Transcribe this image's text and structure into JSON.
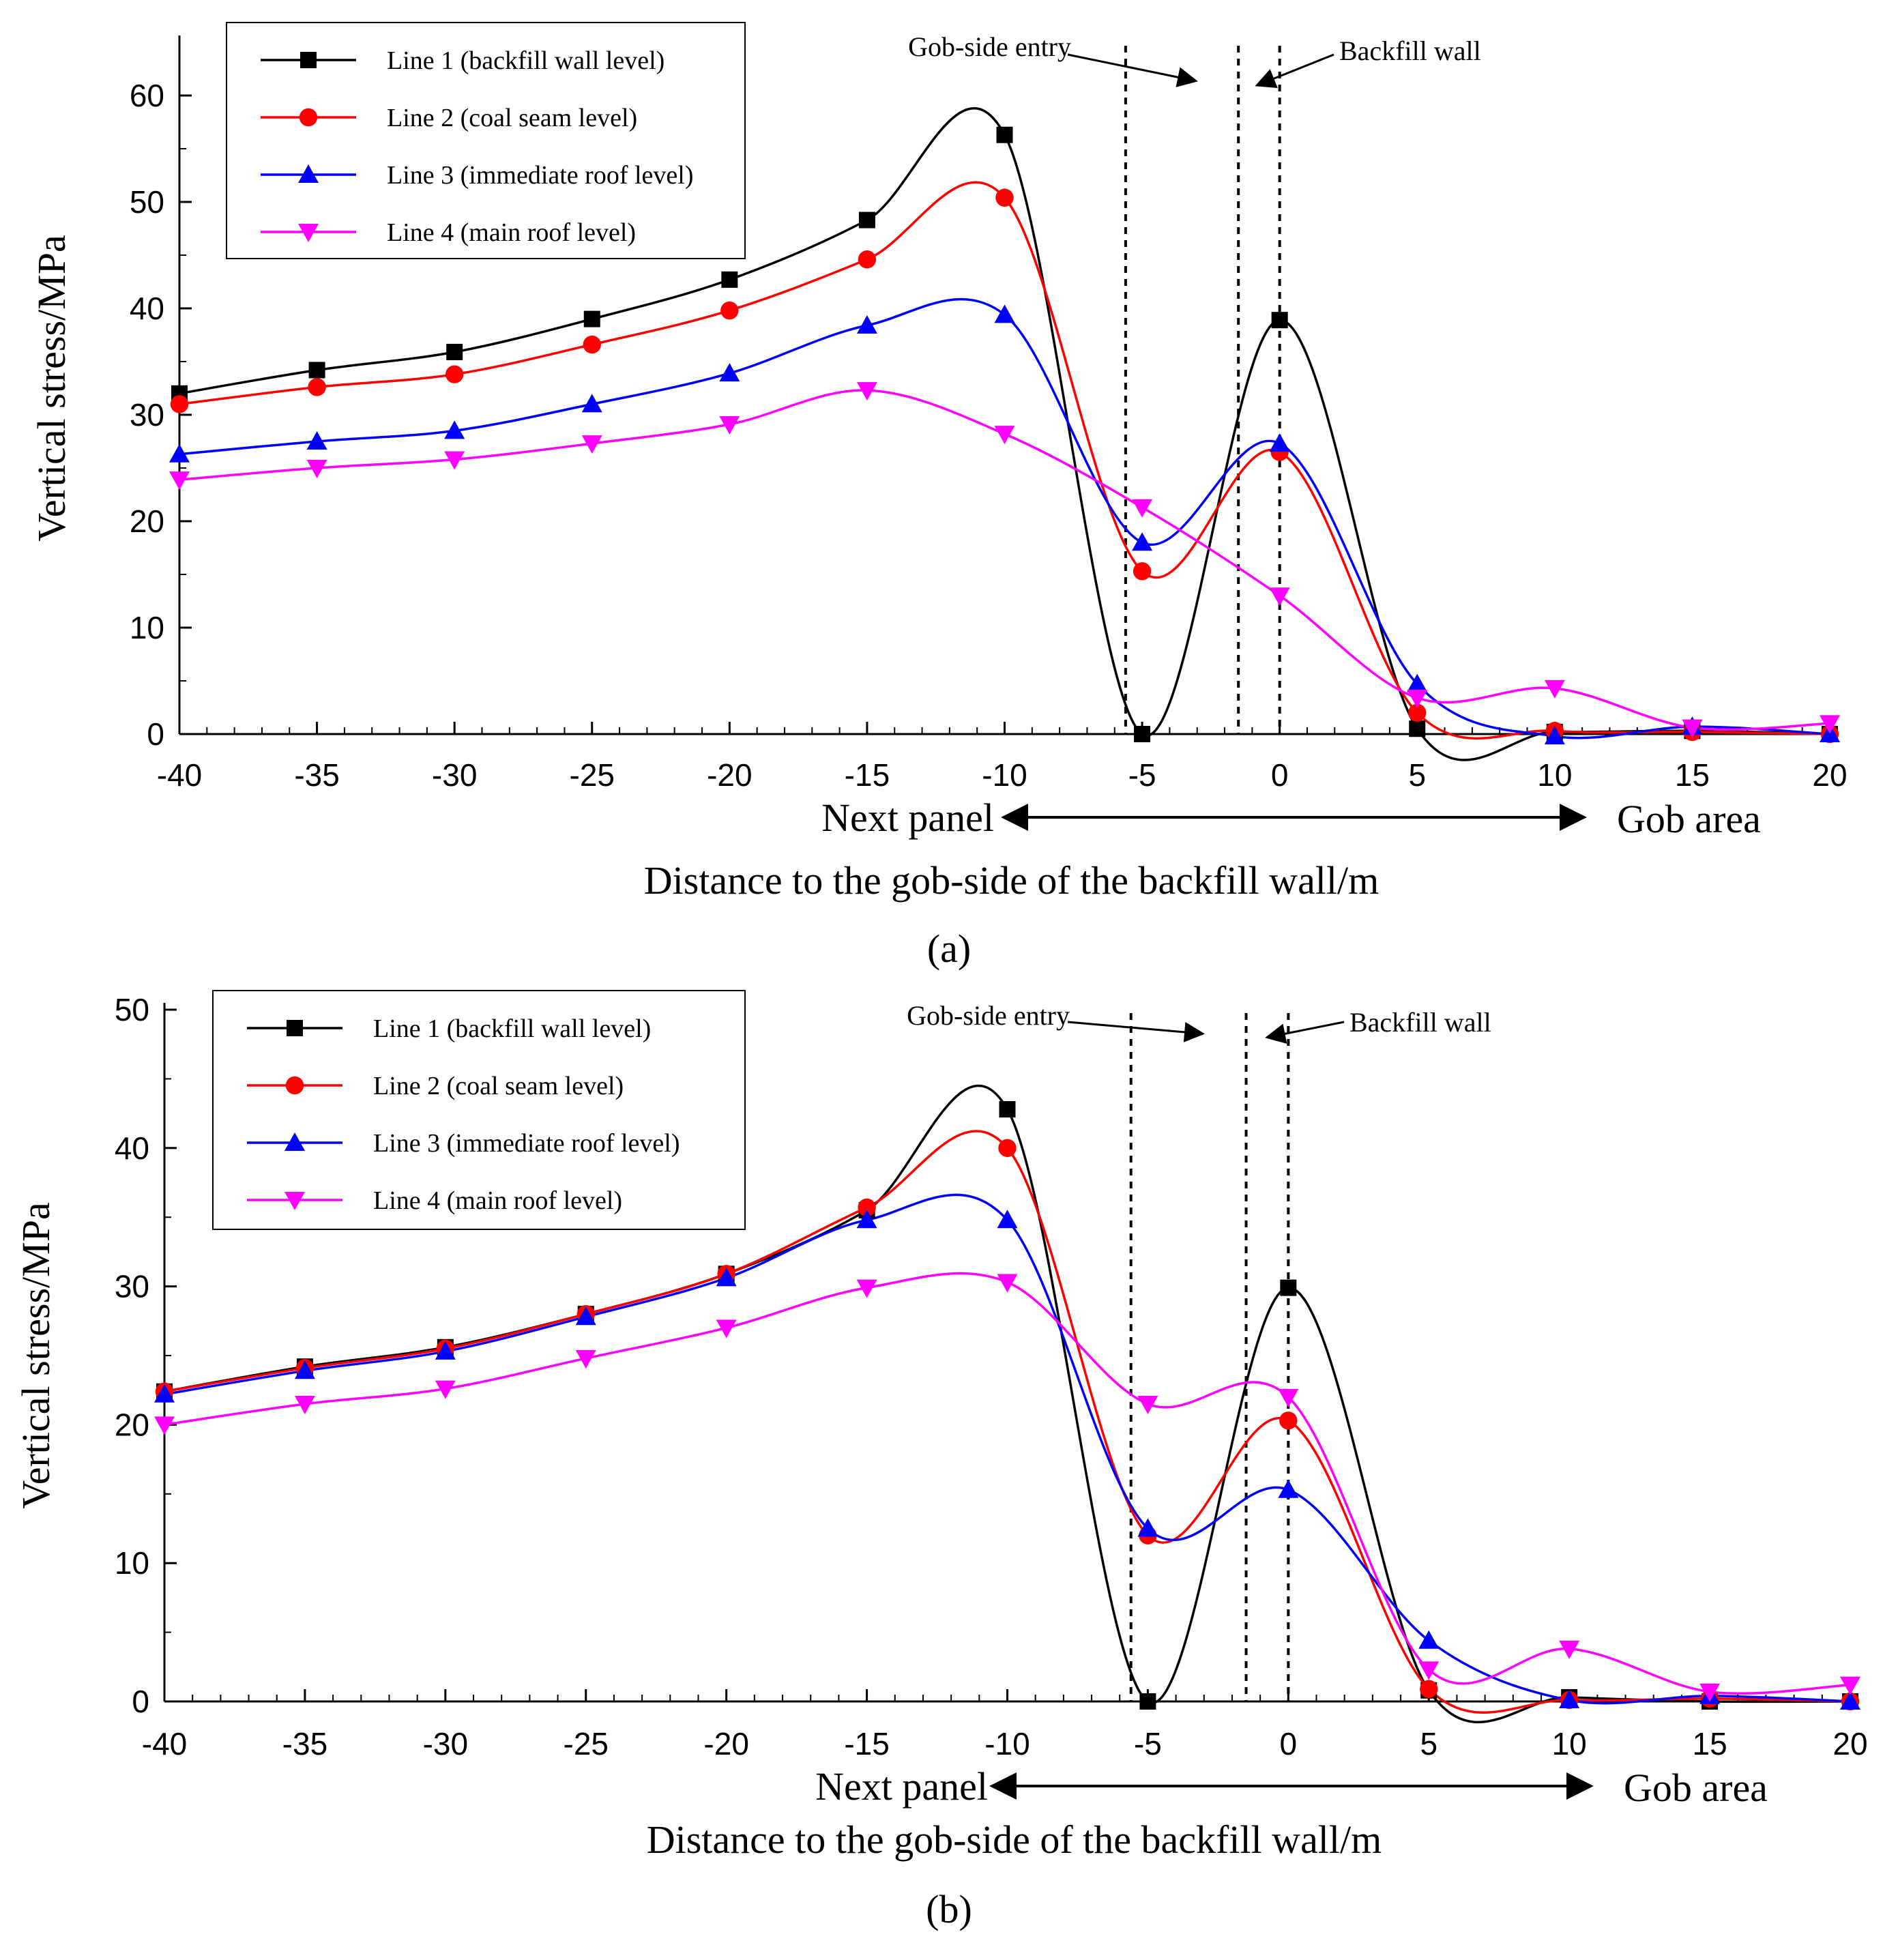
{
  "chart_data": [
    {
      "type": "line",
      "panel_label": "(a)",
      "panel_letter": "a",
      "xlabel": "Distance to the gob-side of the backfill wall/m",
      "ylabel": "Vertical stress/MPa",
      "xlim": [
        -40,
        20
      ],
      "ylim": [
        0,
        65
      ],
      "xticks": [
        -40,
        -35,
        -30,
        -25,
        -20,
        -15,
        -10,
        -5,
        0,
        5,
        10,
        15,
        20
      ],
      "yticks": [
        0,
        10,
        20,
        30,
        40,
        50,
        60
      ],
      "legend_position": "top-left",
      "annotations": {
        "gob_side_entry": "Gob-side entry",
        "backfill_wall": "Backfill wall",
        "next_panel": "Next panel",
        "gob_area": "Gob area"
      },
      "dashed_lines_x": [
        -5.6,
        -1.5,
        0
      ],
      "series": [
        {
          "name": "Line 1 (backfill wall level)",
          "color": "#000000",
          "marker": "square",
          "x": [
            -40,
            -35,
            -30,
            -25,
            -20,
            -15,
            -10,
            -5,
            0,
            5,
            10,
            15,
            20
          ],
          "values": [
            32,
            34.2,
            35.9,
            39,
            42.7,
            48.3,
            56.3,
            0,
            38.9,
            0.5,
            0.2,
            0.3,
            0
          ]
        },
        {
          "name": "Line 2 (coal seam level)",
          "color": "#ff0000",
          "marker": "circle",
          "x": [
            -40,
            -35,
            -30,
            -25,
            -20,
            -15,
            -10,
            -5,
            0,
            5,
            10,
            15,
            20
          ],
          "values": [
            31,
            32.6,
            33.8,
            36.6,
            39.8,
            44.6,
            50.4,
            15.3,
            26.5,
            2,
            0.3,
            0.2,
            0
          ]
        },
        {
          "name": "Line 3 (immediate roof level)",
          "color": "#0000ff",
          "marker": "triangle-up",
          "x": [
            -40,
            -35,
            -30,
            -25,
            -20,
            -15,
            -10,
            -5,
            0,
            5,
            10,
            15,
            20
          ],
          "values": [
            26.3,
            27.5,
            28.5,
            31,
            33.9,
            38.4,
            39.4,
            18,
            27.3,
            4.7,
            -0.2,
            0.7,
            0
          ]
        },
        {
          "name": "Line 4 (main roof level)",
          "color": "#ff00ff",
          "marker": "triangle-down",
          "x": [
            -40,
            -35,
            -30,
            -25,
            -20,
            -15,
            -10,
            -5,
            0,
            5,
            10,
            15,
            20
          ],
          "values": [
            23.9,
            25,
            25.8,
            27.3,
            29.1,
            32.3,
            28.2,
            21.3,
            13,
            3.4,
            4.3,
            0.6,
            1
          ]
        }
      ]
    },
    {
      "type": "line",
      "panel_label": "(b)",
      "panel_letter": "b",
      "xlabel": "Distance to the gob-side of the backfill wall/m",
      "ylabel": "Vertical stress/MPa",
      "xlim": [
        -40,
        20
      ],
      "ylim": [
        0,
        50
      ],
      "xticks": [
        -40,
        -35,
        -30,
        -25,
        -20,
        -15,
        -10,
        -5,
        0,
        5,
        10,
        15,
        20
      ],
      "yticks": [
        0,
        10,
        20,
        30,
        40,
        50
      ],
      "legend_position": "top-left",
      "annotations": {
        "gob_side_entry": "Gob-side entry",
        "backfill_wall": "Backfill wall",
        "next_panel": "Next panel",
        "gob_area": "Gob area"
      },
      "dashed_lines_x": [
        -5.6,
        -1.5,
        0
      ],
      "series": [
        {
          "name": "Line 1 (backfill wall level)",
          "color": "#000000",
          "marker": "square",
          "x": [
            -40,
            -35,
            -30,
            -25,
            -20,
            -15,
            -10,
            -5,
            0,
            5,
            10,
            15,
            20
          ],
          "values": [
            22.4,
            24.2,
            25.6,
            28,
            30.9,
            35.5,
            42.8,
            0,
            29.9,
            0.8,
            0.3,
            0,
            0
          ]
        },
        {
          "name": "Line 2 (coal seam level)",
          "color": "#ff0000",
          "marker": "circle",
          "x": [
            -40,
            -35,
            -30,
            -25,
            -20,
            -15,
            -10,
            -5,
            0,
            5,
            10,
            15,
            20
          ],
          "values": [
            22.4,
            24.1,
            25.5,
            28,
            30.9,
            35.7,
            40,
            12,
            20.3,
            0.9,
            0.1,
            0.2,
            0
          ]
        },
        {
          "name": "Line 3 (immediate roof level)",
          "color": "#0000ff",
          "marker": "triangle-up",
          "x": [
            -40,
            -35,
            -30,
            -25,
            -20,
            -15,
            -10,
            -5,
            0,
            5,
            10,
            15,
            20
          ],
          "values": [
            22.2,
            23.9,
            25.3,
            27.8,
            30.6,
            34.8,
            34.8,
            12.5,
            15.3,
            4.4,
            0.1,
            0.4,
            0
          ]
        },
        {
          "name": "Line 4 (main roof level)",
          "color": "#ff00ff",
          "marker": "triangle-down",
          "x": [
            -40,
            -35,
            -30,
            -25,
            -20,
            -15,
            -10,
            -5,
            0,
            5,
            10,
            15,
            20
          ],
          "values": [
            20,
            21.5,
            22.6,
            24.8,
            27,
            29.9,
            30.3,
            21.5,
            22,
            2.3,
            3.8,
            0.7,
            1.2
          ]
        }
      ]
    }
  ]
}
